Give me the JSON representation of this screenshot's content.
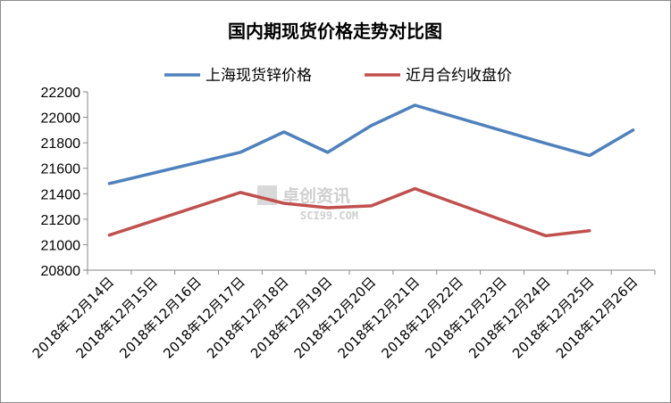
{
  "chart_data": {
    "type": "line",
    "title": "国内期现货价格走势对比图",
    "categories": [
      "2018年12月14日",
      "2018年12月15日",
      "2018年12月16日",
      "2018年12月17日",
      "2018年12月18日",
      "2018年12月19日",
      "2018年12月20日",
      "2018年12月21日",
      "2018年12月22日",
      "2018年12月23日",
      "2018年12月24日",
      "2018年12月25日",
      "2018年12月26日"
    ],
    "series": [
      {
        "name": "上海现货锌价格",
        "color": "#4f81bd",
        "values": [
          21480,
          null,
          null,
          21725,
          21885,
          21725,
          21935,
          22095,
          null,
          null,
          21795,
          21700,
          21900
        ]
      },
      {
        "name": "近月合约收盘价",
        "color": "#c0504d",
        "values": [
          21075,
          null,
          null,
          21410,
          21325,
          21290,
          21305,
          21440,
          null,
          null,
          21070,
          21110,
          null
        ]
      }
    ],
    "ylim": [
      20800,
      22200
    ],
    "yticks": [
      20800,
      21000,
      21200,
      21400,
      21600,
      21800,
      22000,
      22200
    ],
    "grid": false,
    "legend": "top",
    "xlabel": "",
    "ylabel": ""
  },
  "watermark": {
    "text": "卓创资讯",
    "sub": "SCI99.COM"
  }
}
